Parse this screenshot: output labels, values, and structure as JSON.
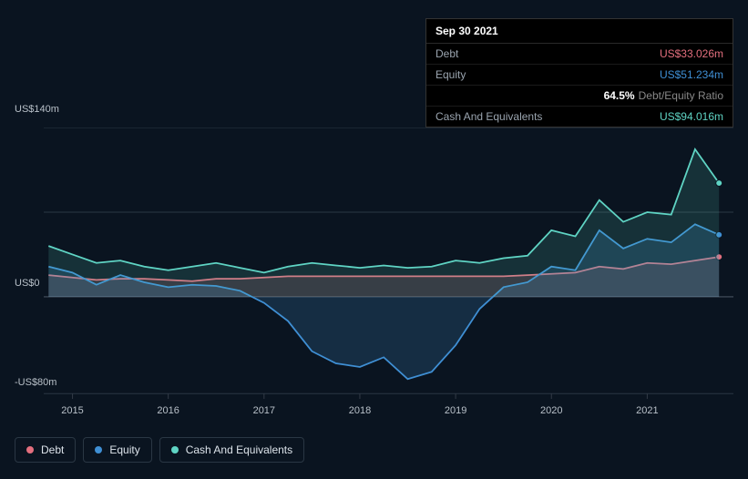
{
  "chart": {
    "type": "area",
    "background_color": "#0a1420",
    "grid_color": "#2a3744",
    "baseline_color": "#556270",
    "text_color": "#b8c0c8",
    "font_size_axis": 11,
    "font_size_legend": 12,
    "y_axis": {
      "min": -80,
      "max": 140,
      "zero": 0,
      "labels": {
        "top": "US$140m",
        "zero": "US$0",
        "bottom": "-US$80m"
      }
    },
    "x_axis": {
      "ticks": [
        "2015",
        "2016",
        "2017",
        "2018",
        "2019",
        "2020",
        "2021"
      ],
      "min": 2014.7,
      "max": 2021.9
    },
    "series": [
      {
        "name": "Debt",
        "color": "#e36f7e",
        "fill_opacity": 0.18,
        "line_width": 1.8,
        "data": [
          [
            2014.75,
            18
          ],
          [
            2015.0,
            16
          ],
          [
            2015.25,
            14
          ],
          [
            2015.5,
            15
          ],
          [
            2015.75,
            15
          ],
          [
            2016.0,
            14
          ],
          [
            2016.25,
            13
          ],
          [
            2016.5,
            15
          ],
          [
            2016.75,
            15
          ],
          [
            2017.0,
            16
          ],
          [
            2017.25,
            17
          ],
          [
            2017.5,
            17
          ],
          [
            2017.75,
            17
          ],
          [
            2018.0,
            17
          ],
          [
            2018.25,
            17
          ],
          [
            2018.5,
            17
          ],
          [
            2018.75,
            17
          ],
          [
            2019.0,
            17
          ],
          [
            2019.25,
            17
          ],
          [
            2019.5,
            17
          ],
          [
            2019.75,
            18
          ],
          [
            2020.0,
            19
          ],
          [
            2020.25,
            20
          ],
          [
            2020.5,
            25
          ],
          [
            2020.75,
            23
          ],
          [
            2021.0,
            28
          ],
          [
            2021.25,
            27
          ],
          [
            2021.5,
            30
          ],
          [
            2021.75,
            33.026
          ]
        ]
      },
      {
        "name": "Equity",
        "color": "#3f8fd4",
        "fill_opacity": 0.2,
        "line_width": 1.8,
        "data": [
          [
            2014.75,
            25
          ],
          [
            2015.0,
            20
          ],
          [
            2015.25,
            10
          ],
          [
            2015.5,
            18
          ],
          [
            2015.75,
            12
          ],
          [
            2016.0,
            8
          ],
          [
            2016.25,
            10
          ],
          [
            2016.5,
            9
          ],
          [
            2016.75,
            5
          ],
          [
            2017.0,
            -5
          ],
          [
            2017.25,
            -20
          ],
          [
            2017.5,
            -45
          ],
          [
            2017.75,
            -55
          ],
          [
            2018.0,
            -58
          ],
          [
            2018.25,
            -50
          ],
          [
            2018.5,
            -68
          ],
          [
            2018.75,
            -62
          ],
          [
            2019.0,
            -40
          ],
          [
            2019.25,
            -10
          ],
          [
            2019.5,
            8
          ],
          [
            2019.75,
            12
          ],
          [
            2020.0,
            25
          ],
          [
            2020.25,
            22
          ],
          [
            2020.5,
            55
          ],
          [
            2020.75,
            40
          ],
          [
            2021.0,
            48
          ],
          [
            2021.25,
            45
          ],
          [
            2021.5,
            60
          ],
          [
            2021.75,
            51.234
          ]
        ]
      },
      {
        "name": "Cash And Equivalents",
        "color": "#5fd4c4",
        "fill_opacity": 0.15,
        "line_width": 1.8,
        "data": [
          [
            2014.75,
            42
          ],
          [
            2015.0,
            35
          ],
          [
            2015.25,
            28
          ],
          [
            2015.5,
            30
          ],
          [
            2015.75,
            25
          ],
          [
            2016.0,
            22
          ],
          [
            2016.25,
            25
          ],
          [
            2016.5,
            28
          ],
          [
            2016.75,
            24
          ],
          [
            2017.0,
            20
          ],
          [
            2017.25,
            25
          ],
          [
            2017.5,
            28
          ],
          [
            2017.75,
            26
          ],
          [
            2018.0,
            24
          ],
          [
            2018.25,
            26
          ],
          [
            2018.5,
            24
          ],
          [
            2018.75,
            25
          ],
          [
            2019.0,
            30
          ],
          [
            2019.25,
            28
          ],
          [
            2019.5,
            32
          ],
          [
            2019.75,
            34
          ],
          [
            2020.0,
            55
          ],
          [
            2020.25,
            50
          ],
          [
            2020.5,
            80
          ],
          [
            2020.75,
            62
          ],
          [
            2021.0,
            70
          ],
          [
            2021.25,
            68
          ],
          [
            2021.5,
            122
          ],
          [
            2021.75,
            94.016
          ]
        ]
      }
    ],
    "end_markers": true
  },
  "tooltip": {
    "date": "Sep 30 2021",
    "rows": [
      {
        "label": "Debt",
        "value": "US$33.026m",
        "color": "#e36f7e"
      },
      {
        "label": "Equity",
        "value": "US$51.234m",
        "color": "#3f8fd4"
      },
      {
        "label_ratio_pct": "64.5%",
        "label_ratio_text": "Debt/Equity Ratio",
        "is_ratio": true
      },
      {
        "label": "Cash And Equivalents",
        "value": "US$94.016m",
        "color": "#5fd4c4"
      }
    ]
  },
  "legend": {
    "items": [
      {
        "label": "Debt",
        "color": "#e36f7e"
      },
      {
        "label": "Equity",
        "color": "#3f8fd4"
      },
      {
        "label": "Cash And Equivalents",
        "color": "#5fd4c4"
      }
    ],
    "border_color": "#2a3744"
  }
}
